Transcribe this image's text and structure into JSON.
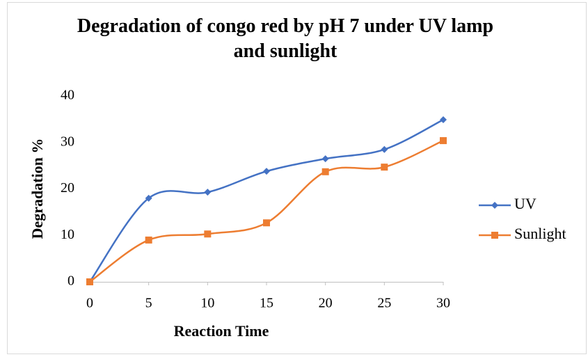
{
  "chart_data": {
    "type": "line",
    "smooth": true,
    "title": "Degradation of congo red by pH 7 under UV lamp and sunlight",
    "x_label": "Reaction Time",
    "y_label": "Degradation %",
    "x": [
      0,
      5,
      10,
      15,
      20,
      25,
      30
    ],
    "series": [
      {
        "name": "UV",
        "color": "#4472c4",
        "marker": "diamond",
        "values": [
          0,
          18.0,
          19.3,
          23.8,
          26.5,
          28.5,
          34.9
        ]
      },
      {
        "name": "Sunlight",
        "color": "#ed7d31",
        "marker": "square",
        "values": [
          0,
          9.0,
          10.3,
          12.7,
          23.7,
          24.7,
          30.4
        ]
      }
    ],
    "xlim": [
      0,
      30
    ],
    "xticks": [
      0,
      5,
      10,
      15,
      20,
      25,
      30
    ],
    "ylim": [
      0,
      40
    ],
    "yticks": [
      0,
      10,
      20,
      30,
      40
    ],
    "grid": false,
    "legend": "right"
  }
}
